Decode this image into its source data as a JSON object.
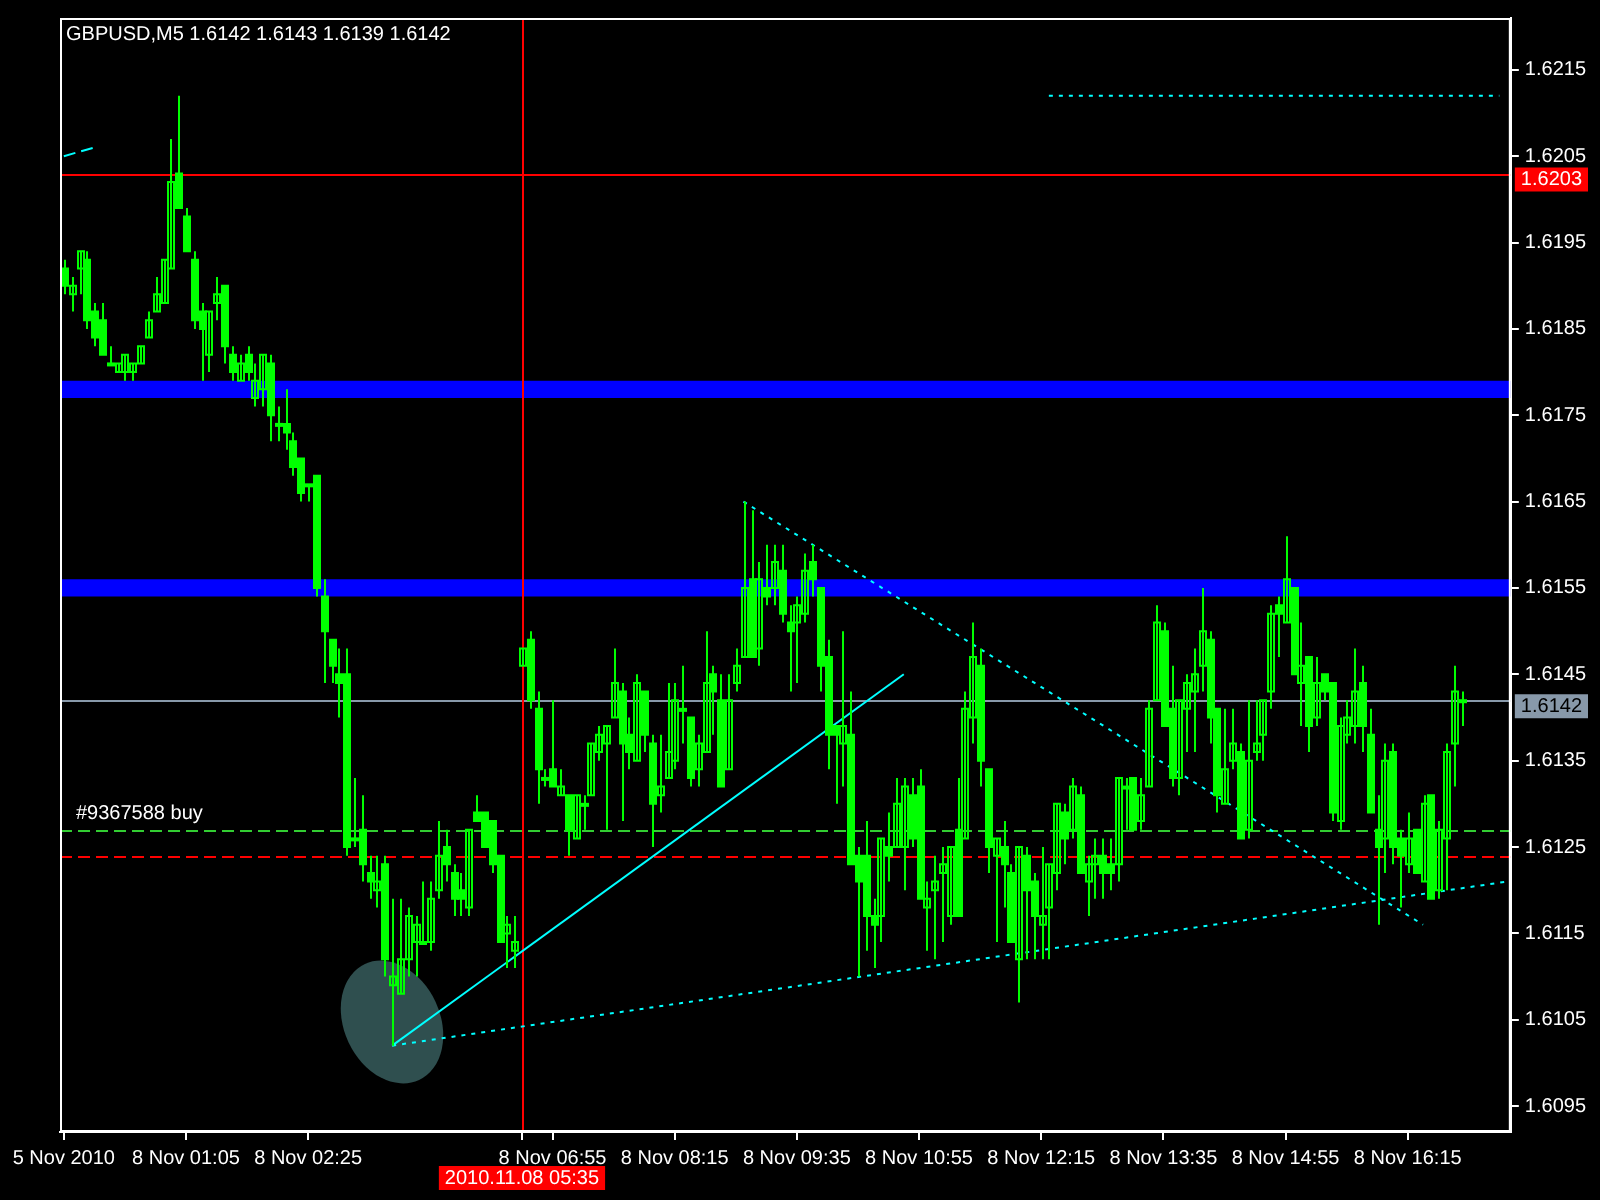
{
  "chart_data": {
    "type": "candlestick",
    "title": "GBPUSD,M5 1.6142 1.6143 1.6139 1.6142",
    "color": "#00ff00",
    "categories": [
      "5 Nov 2010",
      null,
      null,
      null,
      null,
      null,
      null,
      null,
      null,
      null,
      null,
      null,
      null,
      null,
      null,
      null,
      "8 Nov 01:05",
      null,
      null,
      null,
      null,
      null,
      null,
      null,
      null,
      null,
      null,
      null,
      null,
      null,
      null,
      null,
      "8 Nov 02:25",
      null,
      null,
      null,
      null,
      null,
      null,
      null,
      null,
      null,
      null,
      null,
      null,
      null,
      null,
      null,
      null,
      null,
      null,
      null,
      null,
      null,
      null,
      null,
      null,
      null,
      null,
      null,
      "2010.11.08 05:35",
      null,
      null,
      null,
      "8 Nov 06:55",
      null,
      null,
      null,
      null,
      null,
      null,
      null,
      null,
      null,
      null,
      null,
      null,
      null,
      null,
      null,
      "8 Nov 08:15",
      null,
      null,
      null,
      null,
      null,
      null,
      null,
      null,
      null,
      null,
      null,
      null,
      null,
      null,
      null,
      "8 Nov 09:35",
      null,
      null,
      null,
      null,
      null,
      null,
      null,
      null,
      null,
      null,
      null,
      null,
      null,
      null,
      null,
      "8 Nov 10:55",
      null,
      null,
      null,
      null,
      null,
      null,
      null,
      null,
      null,
      null,
      null,
      null,
      null,
      null,
      null,
      "8 Nov 12:15",
      null,
      null,
      null,
      null,
      null,
      null,
      null,
      null,
      null,
      null,
      null,
      null,
      null,
      null,
      null,
      "8 Nov 13:35",
      null,
      null,
      null,
      null,
      null,
      null,
      null,
      null,
      null,
      null,
      null,
      null,
      null,
      null,
      null,
      "8 Nov 14:55",
      null,
      null,
      null,
      null,
      null,
      null,
      null,
      null,
      null,
      null,
      null,
      null,
      null,
      null,
      null,
      "8 Nov 16:15",
      null,
      null,
      null,
      null,
      null,
      null,
      null,
      null,
      null,
      null,
      null,
      null,
      null
    ],
    "ohlc": [
      [
        1.6192,
        1.6193,
        1.6189,
        1.619
      ],
      [
        1.6189,
        1.6191,
        1.6187,
        1.619
      ],
      [
        1.6192,
        1.6194,
        1.6189,
        1.6194
      ],
      [
        1.6193,
        1.6194,
        1.6185,
        1.6186
      ],
      [
        1.6187,
        1.6188,
        1.6183,
        1.6184
      ],
      [
        1.6186,
        1.6188,
        1.6182,
        1.6182
      ],
      [
        1.6181,
        1.6183,
        1.6181,
        1.6181
      ],
      [
        1.618,
        1.6181,
        1.618,
        1.6181
      ],
      [
        1.618,
        1.6182,
        1.6179,
        1.6182
      ],
      [
        1.618,
        1.6181,
        1.6179,
        1.6181
      ],
      [
        1.6181,
        1.6183,
        1.6181,
        1.6183
      ],
      [
        1.6184,
        1.6187,
        1.6184,
        1.6186
      ],
      [
        1.6187,
        1.6191,
        1.6187,
        1.6189
      ],
      [
        1.6188,
        1.6193,
        1.6188,
        1.6193
      ],
      [
        1.6192,
        1.6207,
        1.6192,
        1.6202
      ],
      [
        1.6203,
        1.6212,
        1.6199,
        1.6199
      ],
      [
        1.6198,
        1.6199,
        1.6194,
        1.6194
      ],
      [
        1.6193,
        1.6194,
        1.6185,
        1.6186
      ],
      [
        1.6187,
        1.6188,
        1.6179,
        1.6185
      ],
      [
        1.6182,
        1.6187,
        1.618,
        1.6187
      ],
      [
        1.6188,
        1.6191,
        1.6186,
        1.6189
      ],
      [
        1.619,
        1.619,
        1.6181,
        1.6183
      ],
      [
        1.6182,
        1.6183,
        1.6179,
        1.618
      ],
      [
        1.6179,
        1.6182,
        1.6179,
        1.6181
      ],
      [
        1.6182,
        1.6183,
        1.6179,
        1.618
      ],
      [
        1.6177,
        1.6181,
        1.6176,
        1.6179
      ],
      [
        1.6178,
        1.6182,
        1.6176,
        1.6182
      ],
      [
        1.6181,
        1.6182,
        1.6172,
        1.6175
      ],
      [
        1.6174,
        1.6176,
        1.6172,
        1.6174
      ],
      [
        1.6174,
        1.6178,
        1.6171,
        1.6173
      ],
      [
        1.6172,
        1.6173,
        1.6168,
        1.6169
      ],
      [
        1.617,
        1.617,
        1.6165,
        1.6166
      ],
      [
        1.6167,
        1.6167,
        1.6165,
        1.6167
      ],
      [
        1.6168,
        1.6168,
        1.6154,
        1.6155
      ],
      [
        1.6154,
        1.6156,
        1.6144,
        1.615
      ],
      [
        1.6149,
        1.6149,
        1.6144,
        1.6146
      ],
      [
        1.6145,
        1.6148,
        1.614,
        1.6144
      ],
      [
        1.6145,
        1.6148,
        1.6124,
        1.6125
      ],
      [
        1.6126,
        1.6133,
        1.6125,
        1.6126
      ],
      [
        1.6127,
        1.6131,
        1.6121,
        1.6123
      ],
      [
        1.6122,
        1.6124,
        1.6119,
        1.6121
      ],
      [
        1.612,
        1.6124,
        1.6118,
        1.6121
      ],
      [
        1.6123,
        1.6124,
        1.611,
        1.6112
      ],
      [
        1.6109,
        1.6119,
        1.6102,
        1.611
      ],
      [
        1.6108,
        1.6119,
        1.6108,
        1.6112
      ],
      [
        1.6112,
        1.6118,
        1.611,
        1.6117
      ],
      [
        1.6114,
        1.6117,
        1.611,
        1.6116
      ],
      [
        1.6114,
        1.6121,
        1.6114,
        1.6114
      ],
      [
        1.6114,
        1.6121,
        1.6113,
        1.6119
      ],
      [
        1.612,
        1.6128,
        1.6119,
        1.6124
      ],
      [
        1.6125,
        1.6127,
        1.6121,
        1.6123
      ],
      [
        1.6122,
        1.6123,
        1.6117,
        1.6119
      ],
      [
        1.612,
        1.6122,
        1.6117,
        1.6119
      ],
      [
        1.6118,
        1.6127,
        1.6117,
        1.6127
      ],
      [
        1.6129,
        1.6131,
        1.6128,
        1.6128
      ],
      [
        1.6129,
        1.6129,
        1.6125,
        1.6125
      ],
      [
        1.6128,
        1.6128,
        1.6122,
        1.6123
      ],
      [
        1.6124,
        1.6124,
        1.6114,
        1.6114
      ],
      [
        1.6115,
        1.6117,
        1.6111,
        1.6116
      ],
      [
        1.6113,
        1.6117,
        1.6111,
        1.6114
      ],
      [
        1.6146,
        1.6148,
        1.6146,
        1.6148
      ],
      [
        1.6149,
        1.615,
        1.6141,
        1.6142
      ],
      [
        1.6141,
        1.6143,
        1.613,
        1.6134
      ],
      [
        1.6133,
        1.6134,
        1.6132,
        1.6133
      ],
      [
        1.6134,
        1.6142,
        1.6132,
        1.6132
      ],
      [
        1.6131,
        1.6134,
        1.6131,
        1.6132
      ],
      [
        1.6131,
        1.6131,
        1.6124,
        1.6127
      ],
      [
        1.6126,
        1.6131,
        1.6126,
        1.6131
      ],
      [
        1.613,
        1.6131,
        1.6127,
        1.613
      ],
      [
        1.6131,
        1.6137,
        1.6131,
        1.6137
      ],
      [
        1.6136,
        1.6139,
        1.6135,
        1.6138
      ],
      [
        1.6137,
        1.6139,
        1.6127,
        1.6139
      ],
      [
        1.614,
        1.6148,
        1.614,
        1.6144
      ],
      [
        1.6143,
        1.6144,
        1.6128,
        1.6137
      ],
      [
        1.6138,
        1.614,
        1.6134,
        1.6136
      ],
      [
        1.6135,
        1.6145,
        1.6135,
        1.6144
      ],
      [
        1.6143,
        1.6143,
        1.6136,
        1.6138
      ],
      [
        1.6137,
        1.6138,
        1.6125,
        1.613
      ],
      [
        1.6131,
        1.6138,
        1.6129,
        1.6132
      ],
      [
        1.6133,
        1.6144,
        1.6133,
        1.6136
      ],
      [
        1.6135,
        1.6144,
        1.6134,
        1.6142
      ],
      [
        1.6141,
        1.6146,
        1.6137,
        1.6141
      ],
      [
        1.614,
        1.614,
        1.6132,
        1.6133
      ],
      [
        1.6134,
        1.6138,
        1.6132,
        1.6137
      ],
      [
        1.6136,
        1.615,
        1.6136,
        1.6144
      ],
      [
        1.6145,
        1.6146,
        1.6138,
        1.6143
      ],
      [
        1.6142,
        1.6145,
        1.6132,
        1.6132
      ],
      [
        1.6134,
        1.6145,
        1.6134,
        1.6142
      ],
      [
        1.6144,
        1.6148,
        1.6143,
        1.6146
      ],
      [
        1.6147,
        1.6165,
        1.6147,
        1.6155
      ],
      [
        1.6156,
        1.6164,
        1.6147,
        1.6147
      ],
      [
        1.6148,
        1.6158,
        1.6146,
        1.6156
      ],
      [
        1.6155,
        1.616,
        1.6153,
        1.6154
      ],
      [
        1.6155,
        1.616,
        1.6153,
        1.6158
      ],
      [
        1.6157,
        1.616,
        1.6151,
        1.6152
      ],
      [
        1.6151,
        1.6153,
        1.6143,
        1.615
      ],
      [
        1.6151,
        1.6154,
        1.6144,
        1.6153
      ],
      [
        1.6152,
        1.6159,
        1.6151,
        1.6157
      ],
      [
        1.6158,
        1.616,
        1.6154,
        1.6156
      ],
      [
        1.6155,
        1.6155,
        1.6143,
        1.6146
      ],
      [
        1.6147,
        1.6149,
        1.6134,
        1.6138
      ],
      [
        1.6139,
        1.6139,
        1.613,
        1.6138
      ],
      [
        1.6137,
        1.615,
        1.6132,
        1.6139
      ],
      [
        1.6138,
        1.6143,
        1.6123,
        1.6123
      ],
      [
        1.6124,
        1.6125,
        1.611,
        1.6121
      ],
      [
        1.6124,
        1.6128,
        1.6113,
        1.6117
      ],
      [
        1.6117,
        1.6119,
        1.6111,
        1.6116
      ],
      [
        1.6117,
        1.6126,
        1.6114,
        1.6126
      ],
      [
        1.6125,
        1.6129,
        1.6121,
        1.6124
      ],
      [
        1.6125,
        1.6133,
        1.6125,
        1.613
      ],
      [
        1.6125,
        1.6133,
        1.612,
        1.6132
      ],
      [
        1.6131,
        1.6133,
        1.6125,
        1.6126
      ],
      [
        1.6132,
        1.6134,
        1.6119,
        1.6119
      ],
      [
        1.6118,
        1.6121,
        1.6113,
        1.6119
      ],
      [
        1.612,
        1.6124,
        1.6112,
        1.6121
      ],
      [
        1.6122,
        1.6125,
        1.6114,
        1.6123
      ],
      [
        1.6117,
        1.6125,
        1.6116,
        1.6125
      ],
      [
        1.6127,
        1.6133,
        1.6117,
        1.6117
      ],
      [
        1.6126,
        1.6143,
        1.6126,
        1.6141
      ],
      [
        1.614,
        1.6151,
        1.6137,
        1.6147
      ],
      [
        1.6146,
        1.6148,
        1.6132,
        1.6135
      ],
      [
        1.6134,
        1.6134,
        1.6122,
        1.6125
      ],
      [
        1.6124,
        1.6126,
        1.6114,
        1.6126
      ],
      [
        1.6125,
        1.6128,
        1.6118,
        1.6123
      ],
      [
        1.6122,
        1.6123,
        1.6114,
        1.6114
      ],
      [
        1.6112,
        1.6125,
        1.6107,
        1.6125
      ],
      [
        1.6124,
        1.6125,
        1.6112,
        1.612
      ],
      [
        1.6121,
        1.6122,
        1.6112,
        1.6117
      ],
      [
        1.6116,
        1.6125,
        1.6112,
        1.6117
      ],
      [
        1.6118,
        1.6123,
        1.6112,
        1.6123
      ],
      [
        1.6122,
        1.613,
        1.612,
        1.613
      ],
      [
        1.6129,
        1.613,
        1.6123,
        1.6126
      ],
      [
        1.6127,
        1.6133,
        1.6126,
        1.6132
      ],
      [
        1.6131,
        1.6132,
        1.6122,
        1.6122
      ],
      [
        1.6121,
        1.6124,
        1.6117,
        1.6123
      ],
      [
        1.6123,
        1.6126,
        1.6119,
        1.6124
      ],
      [
        1.6124,
        1.6126,
        1.6119,
        1.6122
      ],
      [
        1.6123,
        1.6126,
        1.612,
        1.6122
      ],
      [
        1.6123,
        1.6133,
        1.6121,
        1.6133
      ],
      [
        1.6132,
        1.6133,
        1.6127,
        1.6132
      ],
      [
        1.6133,
        1.6133,
        1.6127,
        1.6127
      ],
      [
        1.6128,
        1.6133,
        1.6127,
        1.6131
      ],
      [
        1.6132,
        1.6142,
        1.6132,
        1.6141
      ],
      [
        1.6142,
        1.6153,
        1.6142,
        1.6151
      ],
      [
        1.615,
        1.6151,
        1.6139,
        1.6139
      ],
      [
        1.6141,
        1.6146,
        1.6132,
        1.6133
      ],
      [
        1.6133,
        1.6142,
        1.6131,
        1.6142
      ],
      [
        1.6141,
        1.6145,
        1.6136,
        1.6144
      ],
      [
        1.6143,
        1.6148,
        1.6136,
        1.6145
      ],
      [
        1.6146,
        1.6155,
        1.6143,
        1.615
      ],
      [
        1.6149,
        1.615,
        1.6137,
        1.614
      ],
      [
        1.6141,
        1.6141,
        1.6129,
        1.6131
      ],
      [
        1.613,
        1.6141,
        1.613,
        1.6134
      ],
      [
        1.6135,
        1.6141,
        1.6134,
        1.6137
      ],
      [
        1.6136,
        1.6137,
        1.6126,
        1.6126
      ],
      [
        1.6127,
        1.6142,
        1.6126,
        1.6135
      ],
      [
        1.6136,
        1.6142,
        1.6135,
        1.6137
      ],
      [
        1.6138,
        1.6142,
        1.6135,
        1.6142
      ],
      [
        1.6143,
        1.6153,
        1.6141,
        1.6152
      ],
      [
        1.6153,
        1.6154,
        1.6147,
        1.6152
      ],
      [
        1.6151,
        1.6161,
        1.6151,
        1.6156
      ],
      [
        1.6155,
        1.6155,
        1.6145,
        1.6145
      ],
      [
        1.6144,
        1.6151,
        1.6139,
        1.6146
      ],
      [
        1.6147,
        1.6147,
        1.6136,
        1.6139
      ],
      [
        1.614,
        1.6147,
        1.6139,
        1.6144
      ],
      [
        1.6145,
        1.6145,
        1.6142,
        1.6143
      ],
      [
        1.6144,
        1.6144,
        1.6128,
        1.6129
      ],
      [
        1.6128,
        1.614,
        1.6127,
        1.6139
      ],
      [
        1.6138,
        1.6142,
        1.6137,
        1.614
      ],
      [
        1.6139,
        1.6148,
        1.6137,
        1.6143
      ],
      [
        1.6144,
        1.6146,
        1.6136,
        1.6139
      ],
      [
        1.6138,
        1.6141,
        1.6129,
        1.6129
      ],
      [
        1.6127,
        1.6131,
        1.6116,
        1.6125
      ],
      [
        1.6126,
        1.6137,
        1.6122,
        1.6135
      ],
      [
        1.6136,
        1.6137,
        1.6123,
        1.6125
      ],
      [
        1.6126,
        1.6127,
        1.6118,
        1.6124
      ],
      [
        1.6123,
        1.6129,
        1.6122,
        1.6126
      ],
      [
        1.6127,
        1.6127,
        1.6122,
        1.6122
      ],
      [
        1.6121,
        1.6131,
        1.6121,
        1.613
      ],
      [
        1.6131,
        1.6131,
        1.6119,
        1.6119
      ],
      [
        1.612,
        1.6128,
        1.6119,
        1.6127
      ],
      [
        1.6126,
        1.6137,
        1.612,
        1.6136
      ],
      [
        1.6137,
        1.6146,
        1.6132,
        1.6143
      ],
      [
        1.6142,
        1.6143,
        1.6139,
        1.6142
      ],
      null,
      null,
      null,
      null,
      null,
      null
    ],
    "series": [
      {
        "type": "line",
        "color": "#00ffff",
        "line_style": "solid",
        "values": [
          null,
          null,
          null,
          null,
          null,
          null,
          null,
          null,
          null,
          null,
          null,
          null,
          null,
          null,
          null,
          null,
          null,
          null,
          null,
          null,
          null,
          null,
          null,
          null,
          null,
          null,
          null,
          null,
          null,
          null,
          null,
          null,
          null,
          null,
          null,
          null,
          null,
          null,
          null,
          null,
          null,
          null,
          null,
          1.6102,
          null,
          null,
          null,
          null,
          null,
          null,
          null,
          null,
          null,
          null,
          null,
          null,
          null,
          null,
          null,
          null,
          null,
          null,
          null,
          null,
          null,
          null,
          null,
          null,
          null,
          null,
          null,
          null,
          null,
          null,
          null,
          null,
          null,
          null,
          null,
          null,
          null,
          null,
          null,
          null,
          null,
          null,
          null,
          null,
          null,
          null,
          null,
          null,
          null,
          null,
          null,
          null,
          null,
          null,
          null,
          null,
          null,
          null,
          null,
          null,
          null,
          null,
          null,
          null,
          null,
          null,
          1.6145,
          null,
          null,
          null,
          null,
          null,
          null,
          null,
          null,
          null,
          null,
          null,
          null,
          null,
          null,
          null,
          null,
          null,
          null,
          null,
          null,
          null,
          null,
          null,
          null,
          null,
          null,
          null,
          null,
          null,
          null,
          null,
          null,
          null,
          null,
          null,
          null,
          null,
          null,
          null,
          null,
          null,
          null,
          null,
          null,
          null,
          null,
          null,
          null,
          null,
          null,
          null,
          null,
          null,
          null,
          null,
          null,
          null,
          null,
          null,
          null,
          null,
          null,
          null,
          null,
          null,
          null,
          null,
          null,
          null,
          null,
          null,
          null,
          null,
          null,
          null,
          null,
          null,
          null,
          null
        ]
      },
      {
        "type": "line",
        "color": "#00ffff",
        "line_style": "dotted",
        "values": [
          null,
          null,
          null,
          null,
          null,
          null,
          null,
          null,
          null,
          null,
          null,
          null,
          null,
          null,
          null,
          null,
          null,
          null,
          null,
          null,
          null,
          null,
          null,
          null,
          null,
          null,
          null,
          null,
          null,
          null,
          null,
          null,
          null,
          null,
          null,
          null,
          null,
          null,
          null,
          null,
          null,
          null,
          null,
          1.6102,
          null,
          null,
          null,
          null,
          null,
          null,
          null,
          null,
          null,
          null,
          null,
          null,
          null,
          null,
          null,
          null,
          null,
          null,
          null,
          null,
          null,
          null,
          null,
          null,
          null,
          null,
          null,
          null,
          null,
          null,
          null,
          null,
          null,
          null,
          null,
          null,
          null,
          null,
          null,
          null,
          null,
          null,
          null,
          null,
          null,
          null,
          null,
          null,
          null,
          null,
          null,
          null,
          null,
          null,
          null,
          null,
          null,
          null,
          null,
          null,
          null,
          null,
          null,
          null,
          null,
          null,
          null,
          null,
          null,
          null,
          null,
          null,
          null,
          null,
          null,
          null,
          null,
          null,
          null,
          null,
          null,
          null,
          null,
          null,
          null,
          null,
          null,
          null,
          null,
          null,
          null,
          null,
          null,
          null,
          null,
          null,
          null,
          null,
          null,
          null,
          null,
          null,
          null,
          null,
          null,
          null,
          null,
          null,
          null,
          null,
          null,
          null,
          null,
          null,
          null,
          null,
          null,
          null,
          null,
          null,
          null,
          null,
          null,
          null,
          null,
          null,
          null,
          null,
          null,
          null,
          null,
          null,
          null,
          null,
          null,
          null,
          null,
          null,
          null,
          null,
          null,
          null,
          null,
          null,
          null,
          1.6121
        ]
      },
      {
        "type": "line",
        "color": "#00ffff",
        "line_style": "dotted",
        "values": [
          null,
          null,
          null,
          null,
          null,
          null,
          null,
          null,
          null,
          null,
          null,
          null,
          null,
          null,
          null,
          null,
          null,
          null,
          null,
          null,
          null,
          null,
          null,
          null,
          null,
          null,
          null,
          null,
          null,
          null,
          null,
          null,
          null,
          null,
          null,
          null,
          null,
          null,
          null,
          null,
          null,
          null,
          null,
          null,
          null,
          null,
          null,
          null,
          null,
          null,
          null,
          null,
          null,
          null,
          null,
          null,
          null,
          null,
          null,
          null,
          null,
          null,
          null,
          null,
          null,
          null,
          null,
          null,
          null,
          null,
          null,
          null,
          null,
          null,
          null,
          null,
          null,
          null,
          null,
          null,
          null,
          null,
          null,
          null,
          null,
          null,
          null,
          null,
          null,
          1.6165,
          null,
          null,
          null,
          null,
          null,
          null,
          null,
          null,
          null,
          null,
          null,
          null,
          null,
          null,
          null,
          null,
          null,
          null,
          null,
          null,
          null,
          null,
          null,
          null,
          null,
          null,
          null,
          null,
          null,
          null,
          null,
          null,
          null,
          null,
          null,
          null,
          null,
          null,
          null,
          null,
          null,
          null,
          null,
          null,
          null,
          null,
          null,
          null,
          null,
          null,
          null,
          null,
          null,
          null,
          null,
          null,
          null,
          null,
          null,
          null,
          null,
          null,
          null,
          null,
          null,
          null,
          null,
          null,
          null,
          null,
          null,
          null,
          null,
          null,
          null,
          null,
          null,
          null,
          null,
          null,
          null,
          null,
          null,
          null,
          null,
          null,
          null,
          null,
          1.6116,
          null,
          null,
          null,
          null,
          null,
          null,
          null,
          null,
          null,
          null,
          null
        ]
      },
      {
        "type": "line",
        "color": "#00ffff",
        "line_style": "dotted",
        "values": [
          null,
          null,
          null,
          null,
          null,
          null,
          null,
          null,
          null,
          null,
          null,
          null,
          null,
          null,
          null,
          null,
          null,
          null,
          null,
          null,
          null,
          null,
          null,
          null,
          null,
          null,
          null,
          null,
          null,
          null,
          null,
          null,
          null,
          null,
          null,
          null,
          null,
          null,
          null,
          null,
          null,
          null,
          null,
          null,
          null,
          null,
          null,
          null,
          null,
          null,
          null,
          null,
          null,
          null,
          null,
          null,
          null,
          null,
          null,
          null,
          null,
          null,
          null,
          null,
          null,
          null,
          null,
          null,
          null,
          null,
          null,
          null,
          null,
          null,
          null,
          null,
          null,
          null,
          null,
          null,
          null,
          null,
          null,
          null,
          null,
          null,
          null,
          null,
          null,
          null,
          null,
          null,
          null,
          null,
          null,
          null,
          null,
          null,
          null,
          null,
          null,
          null,
          null,
          null,
          null,
          null,
          null,
          null,
          null,
          null,
          null,
          null,
          null,
          null,
          null,
          null,
          null,
          null,
          null,
          null,
          null,
          null,
          null,
          null,
          null,
          null,
          null,
          null,
          null,
          1.6212,
          null,
          null,
          null,
          null,
          null,
          null,
          null,
          null,
          null,
          null,
          null,
          null,
          null,
          null,
          null,
          null,
          null,
          null,
          null,
          null,
          null,
          null,
          null,
          null,
          null,
          null,
          null,
          null,
          null,
          null,
          null,
          null,
          null,
          null,
          null,
          null,
          null,
          null,
          null,
          null,
          null,
          null,
          null,
          null,
          null,
          null,
          null,
          null,
          null,
          null,
          null,
          null,
          null,
          null,
          null,
          null,
          null,
          null,
          1.6212,
          null
        ]
      },
      {
        "type": "line",
        "color": "#00ffff",
        "line_style": "dashed",
        "values": [
          1.6205,
          null,
          null,
          null,
          1.6206,
          null,
          null,
          null,
          null,
          null,
          null,
          null,
          null,
          null,
          null,
          null,
          null,
          null,
          null,
          null,
          null,
          null,
          null,
          null,
          null,
          null,
          null,
          null,
          null,
          null,
          null,
          null,
          null,
          null,
          null,
          null,
          null,
          null,
          null,
          null,
          null,
          null,
          null,
          null,
          null,
          null,
          null,
          null,
          null,
          null,
          null,
          null,
          null,
          null,
          null,
          null,
          null,
          null,
          null,
          null,
          null,
          null,
          null,
          null,
          null,
          null,
          null,
          null,
          null,
          null,
          null,
          null,
          null,
          null,
          null,
          null,
          null,
          null,
          null,
          null,
          null,
          null,
          null,
          null,
          null,
          null,
          null,
          null,
          null,
          null,
          null,
          null,
          null,
          null,
          null,
          null,
          null,
          null,
          null,
          null,
          null,
          null,
          null,
          null,
          null,
          null,
          null,
          null,
          null,
          null,
          null,
          null,
          null,
          null,
          null,
          null,
          null,
          null,
          null,
          null,
          null,
          null,
          null,
          null,
          null,
          null,
          null,
          null,
          null,
          null,
          null,
          null,
          null,
          null,
          null,
          null,
          null,
          null,
          null,
          null,
          null,
          null,
          null,
          null,
          null,
          null,
          null,
          null,
          null,
          null,
          null,
          null,
          null,
          null,
          null,
          null,
          null,
          null,
          null,
          null,
          null,
          null,
          null,
          null,
          null,
          null,
          null,
          null,
          null,
          null,
          null,
          null,
          null,
          null,
          null,
          null,
          null,
          null,
          null,
          null,
          null,
          null,
          null,
          null,
          null,
          null,
          null,
          null,
          null,
          null
        ]
      }
    ],
    "bands": [
      {
        "axis": "y",
        "from": 1.6177,
        "to": 1.6179,
        "color": "#0000ff"
      },
      {
        "axis": "y",
        "from": 1.6154,
        "to": 1.6156,
        "color": "#0000ff"
      }
    ],
    "ref_lines": [
      {
        "axis": "y",
        "value": 1.6203,
        "label": "1.6203",
        "color": "#ff0000",
        "line_style": "solid"
      },
      {
        "axis": "y",
        "value": 1.6142,
        "label": "1.6142",
        "color": "#8899aa",
        "line_style": "solid"
      },
      {
        "axis": "y",
        "value": 1.6127,
        "color": "#32cd32",
        "line_style": "dashed"
      },
      {
        "axis": "y",
        "value": 1.6124,
        "color": "#ff0000",
        "line_style": "dashed"
      },
      {
        "axis": "x",
        "value": "2010.11.08 05:35",
        "color": "#ff0000",
        "line_style": "solid"
      }
    ],
    "annotations": [
      "#9367588 buy"
    ],
    "ylim": [
      1.6092,
      1.6221
    ],
    "yticks": [
      1.6095,
      1.6105,
      1.6115,
      1.6125,
      1.6135,
      1.6145,
      1.6155,
      1.6165,
      1.6175,
      1.6185,
      1.6195,
      1.6205,
      1.6215
    ]
  }
}
